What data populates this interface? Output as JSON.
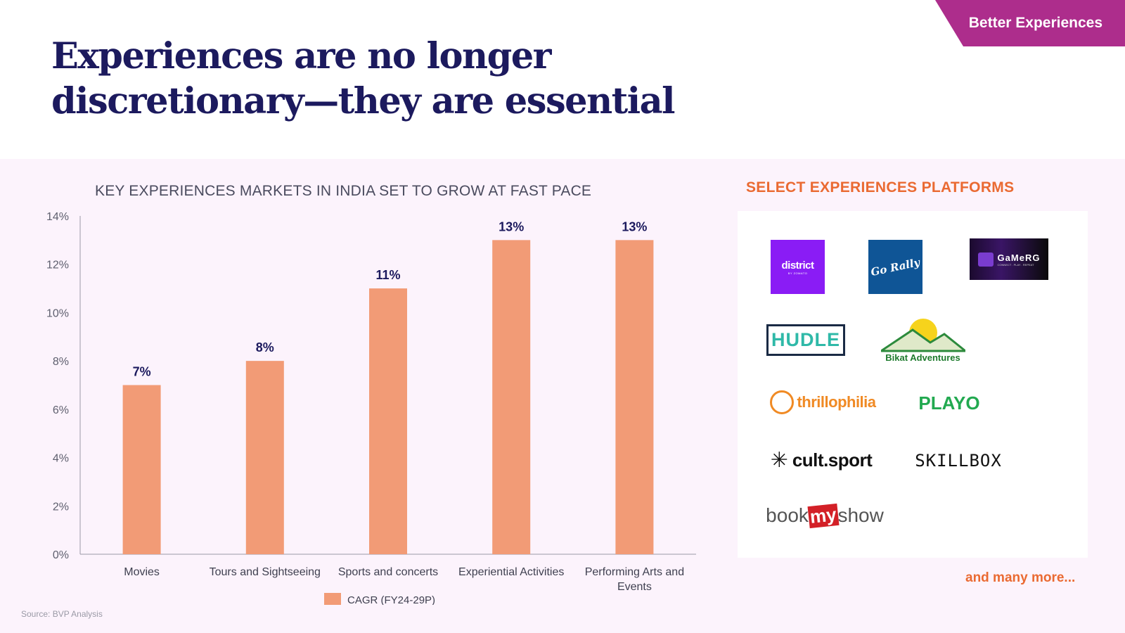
{
  "banner": {
    "label": "Better Experiences"
  },
  "header": {
    "title_line1": "Experiences are no longer",
    "title_line2": "discretionary—they are essential"
  },
  "chart_section": {
    "title": "KEY EXPERIENCES MARKETS IN INDIA SET TO GROW AT FAST PACE"
  },
  "chart_data": {
    "type": "bar",
    "title": "KEY EXPERIENCES MARKETS IN INDIA SET TO GROW AT FAST PACE",
    "categories": [
      "Movies",
      "Tours and Sightseeing",
      "Sports and concerts",
      "Experiential Activities",
      "Performing Arts and Events"
    ],
    "category_lines": [
      [
        "Movies"
      ],
      [
        "Tours and Sightseeing"
      ],
      [
        "Sports and concerts"
      ],
      [
        "Experiential Activities"
      ],
      [
        "Performing Arts and",
        "Events"
      ]
    ],
    "series": [
      {
        "name": "CAGR (FY24-29P)",
        "values": [
          7,
          8,
          11,
          13,
          13
        ],
        "color": "#f29b76"
      }
    ],
    "data_labels": [
      "7%",
      "8%",
      "11%",
      "13%",
      "13%"
    ],
    "xlabel": "",
    "ylabel": "",
    "ylim": [
      0,
      14
    ],
    "yticks": [
      0,
      2,
      4,
      6,
      8,
      10,
      12,
      14
    ],
    "ytick_labels": [
      "0%",
      "2%",
      "4%",
      "6%",
      "8%",
      "10%",
      "12%",
      "14%"
    ],
    "grid": false,
    "legend": "bottom-center"
  },
  "platforms": {
    "title": "SELECT EXPERIENCES PLATFORMS",
    "logos": [
      {
        "name": "district",
        "text": "district",
        "subtext": "BY ZOMATO",
        "bg": "#8a1cf5",
        "color": "#ffffff"
      },
      {
        "name": "gorally",
        "text": "Go Rally",
        "bg": "#0f5596",
        "color": "#ffffff"
      },
      {
        "name": "gamerg",
        "text": "GaMeRG",
        "subtext": "CONNECT . PLAY . REPEAT",
        "bg": "#0d0614",
        "color": "#ffffff"
      },
      {
        "name": "hudle",
        "text": "HUDLE",
        "color": "#2fb9a8"
      },
      {
        "name": "bikat",
        "text": "Bikat Adventures",
        "color": "#1d7a2c"
      },
      {
        "name": "thrillophilia",
        "text": "thrillophilia",
        "color": "#f08a24"
      },
      {
        "name": "playo",
        "text": "PLAYO",
        "color": "#22a950"
      },
      {
        "name": "cultsport",
        "text": "cult.sport",
        "color": "#111111"
      },
      {
        "name": "skillbox",
        "text": "SKILLBOX",
        "color": "#111111"
      },
      {
        "name": "bookmyshow",
        "text_pre": "book",
        "text_mid": "my",
        "text_post": "show",
        "color": "#555555",
        "accent": "#d32027"
      }
    ],
    "more": "and many more..."
  },
  "footer": {
    "source": "Source: BVP Analysis"
  }
}
